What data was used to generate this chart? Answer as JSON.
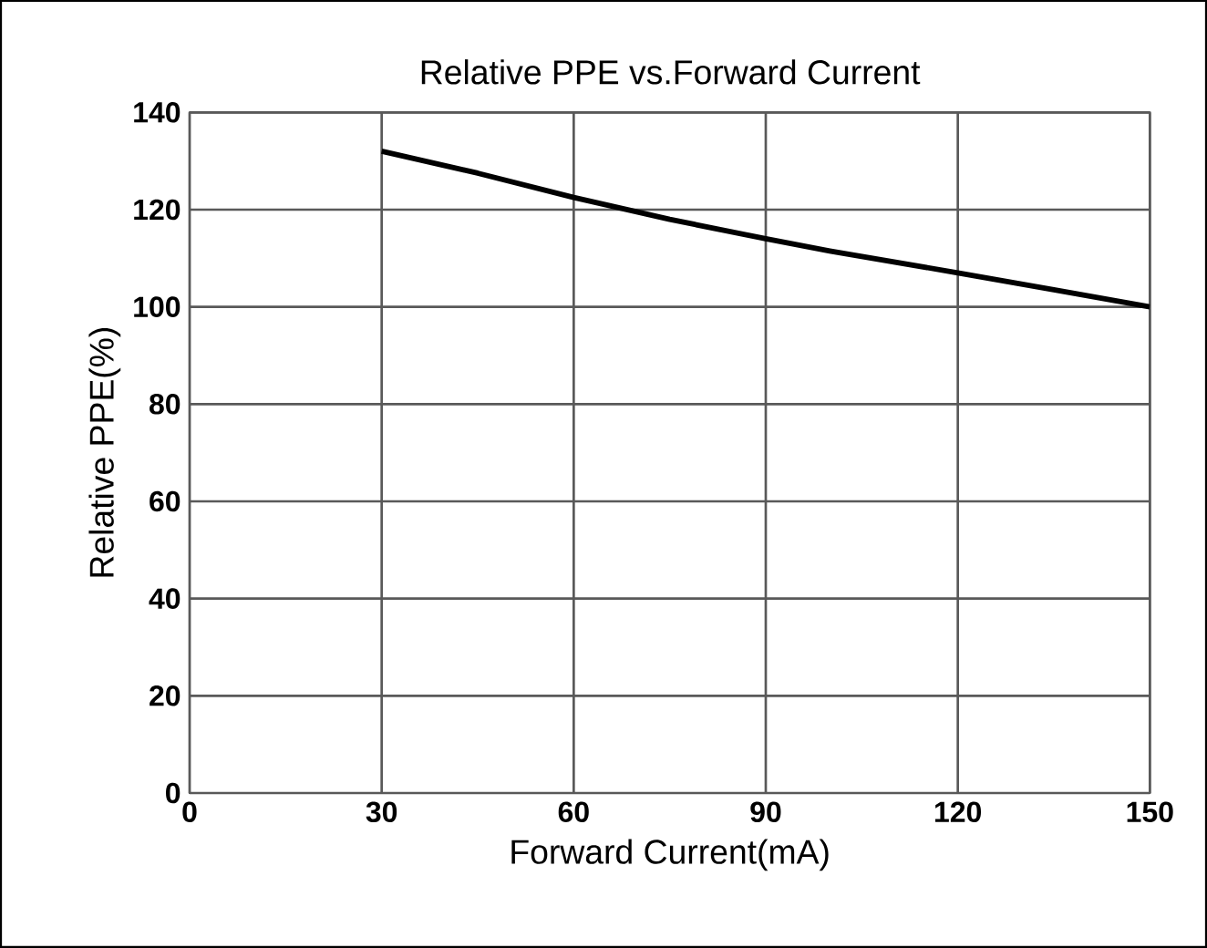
{
  "chart_data": {
    "type": "line",
    "title": "Relative PPE vs.Forward Current",
    "xlabel": "Forward Current(mA)",
    "ylabel": "Relative PPE(%)",
    "x": [
      30,
      45,
      60,
      75,
      90,
      100,
      120,
      135,
      150
    ],
    "values": [
      132,
      127.5,
      122.5,
      118,
      114,
      111.5,
      107,
      103.5,
      100
    ],
    "color": "#000000",
    "xlim": [
      0,
      150
    ],
    "ylim": [
      0,
      140
    ],
    "xticks": [
      0,
      30,
      60,
      90,
      120,
      150
    ],
    "yticks": [
      0,
      20,
      40,
      60,
      80,
      100,
      120,
      140
    ],
    "grid": true
  }
}
